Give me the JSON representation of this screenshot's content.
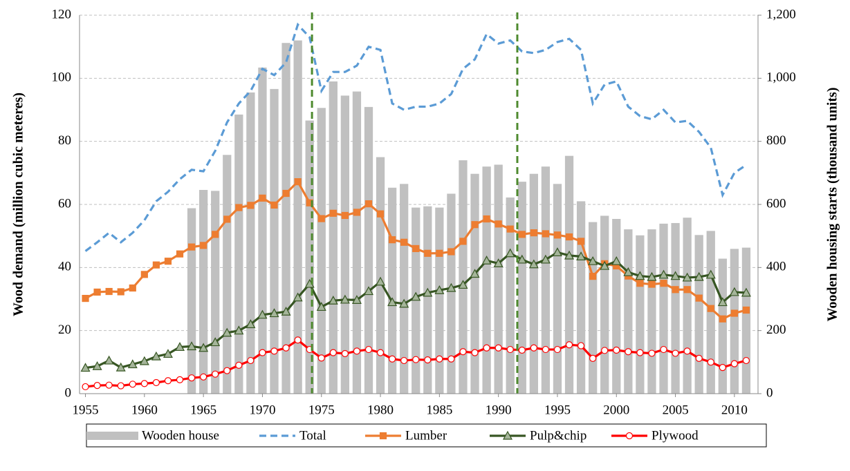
{
  "chart_data": {
    "type": "bar-line",
    "y_label": "Wood demand (million cubic meteres)",
    "y2_label": "Wooden housing starts  (thousand units)",
    "x": [
      1955,
      1956,
      1957,
      1958,
      1959,
      1960,
      1961,
      1962,
      1963,
      1964,
      1965,
      1966,
      1967,
      1968,
      1969,
      1970,
      1971,
      1972,
      1973,
      1974,
      1975,
      1976,
      1977,
      1978,
      1979,
      1980,
      1981,
      1982,
      1983,
      1984,
      1985,
      1986,
      1987,
      1988,
      1989,
      1990,
      1991,
      1992,
      1993,
      1994,
      1995,
      1996,
      1997,
      1998,
      1999,
      2000,
      2001,
      2002,
      2003,
      2004,
      2005,
      2006,
      2007,
      2008,
      2009,
      2010,
      2011
    ],
    "xlim": [
      1954.5,
      2012
    ],
    "xticks": [
      1955,
      1960,
      1965,
      1970,
      1975,
      1980,
      1985,
      1990,
      1995,
      2000,
      2005,
      2010
    ],
    "ylim": [
      0,
      120
    ],
    "yticks": [
      0,
      20,
      40,
      60,
      80,
      100,
      120
    ],
    "y2lim": [
      0,
      1200
    ],
    "y2ticks": [
      0,
      200,
      400,
      600,
      800,
      {
        "value": 1000,
        "label": "1,000"
      },
      {
        "value": 1200,
        "label": "1,200"
      }
    ],
    "grid": true,
    "legend": "bottom",
    "reference_lines": [
      1974.2,
      1991.6
    ],
    "reference_line_color": "#4E8A2E",
    "series": [
      {
        "name": "Wooden house",
        "type": "bar",
        "axis": "y2",
        "color": "#C0C0C0",
        "values": [
          null,
          null,
          null,
          null,
          null,
          null,
          null,
          null,
          null,
          588,
          646,
          643,
          757,
          885,
          955,
          1034,
          966,
          1112,
          1120,
          866,
          906,
          990,
          945,
          958,
          909,
          750,
          653,
          665,
          590,
          594,
          590,
          634,
          740,
          697,
          720,
          726,
          622,
          672,
          697,
          720,
          665,
          754,
          610,
          544,
          564,
          554,
          521,
          502,
          521,
          539,
          541,
          558,
          503,
          516,
          428,
          459,
          463
        ]
      },
      {
        "name": "Total",
        "type": "line",
        "dash": true,
        "marker": "none",
        "color": "#5B9BD5",
        "values": [
          45.2,
          48,
          51,
          48,
          51,
          55,
          61,
          64,
          68,
          71,
          70.5,
          77,
          86,
          92,
          96,
          103,
          101,
          105,
          117,
          113,
          96,
          102,
          102,
          104,
          110,
          109,
          92,
          90,
          91,
          91,
          92,
          95,
          103,
          106,
          114,
          111,
          112,
          108.5,
          108,
          109,
          111.5,
          112.5,
          109,
          92,
          98,
          99,
          91,
          88,
          87,
          90,
          86,
          86.5,
          83,
          78,
          63,
          70,
          72.5
        ]
      },
      {
        "name": "Lumber",
        "type": "line",
        "marker": "square",
        "color": "#ED7D31",
        "marker_fill": "#ED7D31",
        "values": [
          30.2,
          32.2,
          32.4,
          32.3,
          33.5,
          37.8,
          40.8,
          42,
          44.3,
          46.5,
          47,
          50.5,
          55.3,
          59,
          59.7,
          62,
          59.8,
          63.5,
          67.2,
          60.5,
          55.5,
          57.2,
          56.5,
          57.5,
          60.2,
          57,
          48.8,
          48,
          46,
          44.5,
          44.5,
          45,
          48.3,
          53.6,
          55.4,
          53.8,
          52.2,
          50.5,
          51,
          50.7,
          50.3,
          49.7,
          48.3,
          37.2,
          41.2,
          40.5,
          37.3,
          35,
          34.7,
          35,
          33,
          33,
          30.3,
          27,
          23.7,
          25.5,
          26.5
        ]
      },
      {
        "name": "Pulp&chip",
        "type": "line",
        "marker": "triangle",
        "color": "#375623",
        "marker_fill": "#A5B59A",
        "values": [
          8.2,
          8.7,
          10.5,
          8.3,
          9.3,
          10.3,
          11.8,
          12.6,
          14.8,
          15,
          14.5,
          16.3,
          19.3,
          20,
          22,
          25,
          25.5,
          26,
          30.5,
          34.8,
          27.5,
          29.5,
          29.8,
          29.7,
          32.5,
          35.5,
          29,
          28.5,
          30.7,
          32,
          32.8,
          33.5,
          34.5,
          38,
          42.2,
          41.3,
          44.5,
          42.5,
          41,
          42.5,
          44.8,
          43.8,
          43.5,
          42,
          40.5,
          42,
          38.5,
          37.3,
          37,
          37.7,
          37.3,
          36.8,
          37,
          37.7,
          29,
          32.2,
          32
        ]
      },
      {
        "name": "Plywood",
        "type": "line",
        "marker": "circle",
        "color": "#FF0000",
        "marker_fill": "#FFFFFF",
        "values": [
          2.2,
          2.6,
          2.7,
          2.5,
          3,
          3.2,
          3.5,
          4.1,
          4.4,
          5,
          5.3,
          6.2,
          7.3,
          9,
          10.5,
          13,
          13.5,
          14.5,
          17,
          14,
          11.3,
          13,
          12.7,
          13.5,
          14,
          13,
          11,
          10.5,
          10.8,
          10.7,
          11,
          11,
          13.3,
          13,
          14.5,
          14.5,
          14,
          13.8,
          14.5,
          14,
          14,
          15.5,
          15.2,
          11.2,
          13.7,
          13.8,
          13.3,
          13,
          12.8,
          14,
          12.8,
          13.5,
          11.2,
          10,
          8.3,
          9.5,
          10.5
        ]
      }
    ]
  }
}
